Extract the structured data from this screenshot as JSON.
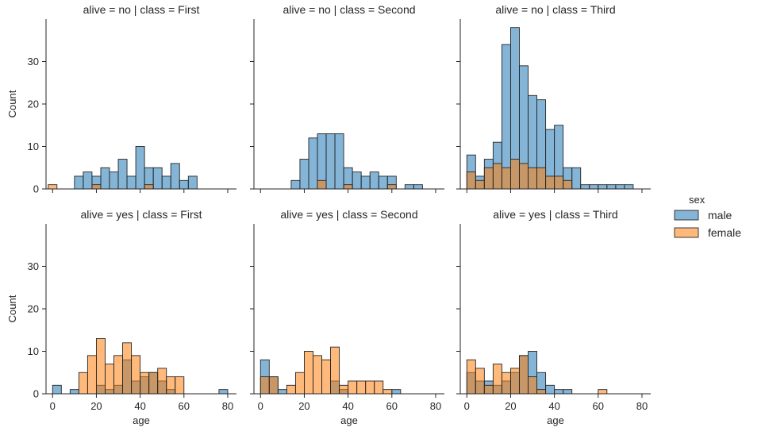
{
  "chart_data": {
    "type": "bar",
    "subtype": "faceted-histogram",
    "xlabel": "age",
    "ylabel": "Count",
    "xlim": [
      -3,
      84
    ],
    "ylim": [
      0,
      40
    ],
    "x_ticks": [
      0,
      20,
      40,
      60,
      80
    ],
    "y_ticks": [
      0,
      10,
      20,
      30
    ],
    "bin_width": 4,
    "legend": {
      "title": "sex",
      "position": "right",
      "entries": [
        {
          "name": "male",
          "color": "#1f77b4"
        },
        {
          "name": "female",
          "color": "#ff7f0e"
        }
      ]
    },
    "hue_alpha": 0.55,
    "facets": [
      {
        "title": "alive = no | class = First",
        "series": [
          {
            "name": "male",
            "bins": [
              [
                10,
                3
              ],
              [
                14,
                4
              ],
              [
                18,
                3
              ],
              [
                22,
                5
              ],
              [
                26,
                4
              ],
              [
                30,
                7
              ],
              [
                34,
                3
              ],
              [
                38,
                10
              ],
              [
                42,
                5
              ],
              [
                46,
                5
              ],
              [
                50,
                3
              ],
              [
                54,
                6
              ],
              [
                58,
                2
              ],
              [
                62,
                3
              ]
            ]
          },
          {
            "name": "female",
            "bins": [
              [
                -2,
                1
              ],
              [
                18,
                1
              ],
              [
                42,
                1
              ]
            ]
          }
        ]
      },
      {
        "title": "alive = no | class = Second",
        "series": [
          {
            "name": "male",
            "bins": [
              [
                14,
                2
              ],
              [
                18,
                7
              ],
              [
                22,
                12
              ],
              [
                26,
                13
              ],
              [
                30,
                13
              ],
              [
                34,
                13
              ],
              [
                38,
                5
              ],
              [
                42,
                4
              ],
              [
                46,
                3
              ],
              [
                50,
                4
              ],
              [
                54,
                3
              ],
              [
                58,
                3
              ],
              [
                66,
                1
              ],
              [
                70,
                1
              ]
            ]
          },
          {
            "name": "female",
            "bins": [
              [
                26,
                2
              ],
              [
                38,
                1
              ],
              [
                58,
                1
              ]
            ]
          }
        ]
      },
      {
        "title": "alive = no | class = Third",
        "series": [
          {
            "name": "male",
            "bins": [
              [
                0,
                8
              ],
              [
                4,
                3
              ],
              [
                8,
                7
              ],
              [
                12,
                11
              ],
              [
                16,
                34
              ],
              [
                20,
                38
              ],
              [
                24,
                29
              ],
              [
                28,
                22
              ],
              [
                32,
                21
              ],
              [
                36,
                14
              ],
              [
                40,
                15
              ],
              [
                44,
                5
              ],
              [
                48,
                5
              ],
              [
                52,
                1
              ],
              [
                56,
                1
              ],
              [
                60,
                1
              ],
              [
                64,
                1
              ],
              [
                68,
                1
              ],
              [
                72,
                1
              ]
            ]
          },
          {
            "name": "female",
            "bins": [
              [
                0,
                4
              ],
              [
                4,
                2
              ],
              [
                8,
                5
              ],
              [
                12,
                6
              ],
              [
                16,
                5
              ],
              [
                20,
                7
              ],
              [
                24,
                6
              ],
              [
                28,
                5
              ],
              [
                32,
                5
              ],
              [
                36,
                3
              ],
              [
                40,
                3
              ],
              [
                44,
                2
              ]
            ]
          }
        ]
      },
      {
        "title": "alive = yes | class = First",
        "series": [
          {
            "name": "male",
            "bins": [
              [
                0,
                2
              ],
              [
                8,
                1
              ],
              [
                20,
                2
              ],
              [
                24,
                1
              ],
              [
                28,
                2
              ],
              [
                32,
                8
              ],
              [
                36,
                3
              ],
              [
                40,
                4
              ],
              [
                44,
                5
              ],
              [
                48,
                3
              ],
              [
                52,
                1
              ],
              [
                76,
                1
              ]
            ]
          },
          {
            "name": "female",
            "bins": [
              [
                12,
                5
              ],
              [
                16,
                9
              ],
              [
                20,
                13
              ],
              [
                24,
                7
              ],
              [
                28,
                9
              ],
              [
                32,
                12
              ],
              [
                36,
                9
              ],
              [
                40,
                5
              ],
              [
                44,
                5
              ],
              [
                48,
                6
              ],
              [
                52,
                4
              ],
              [
                56,
                4
              ]
            ]
          }
        ]
      },
      {
        "title": "alive = yes | class = Second",
        "series": [
          {
            "name": "male",
            "bins": [
              [
                0,
                8
              ],
              [
                4,
                4
              ],
              [
                8,
                1
              ],
              [
                32,
                3
              ],
              [
                36,
                1
              ],
              [
                60,
                1
              ]
            ]
          },
          {
            "name": "female",
            "bins": [
              [
                0,
                4
              ],
              [
                4,
                4
              ],
              [
                12,
                2
              ],
              [
                16,
                5
              ],
              [
                20,
                10
              ],
              [
                24,
                9
              ],
              [
                28,
                8
              ],
              [
                32,
                11
              ],
              [
                36,
                2
              ],
              [
                40,
                3
              ],
              [
                44,
                3
              ],
              [
                48,
                3
              ],
              [
                52,
                3
              ],
              [
                56,
                1
              ]
            ]
          }
        ]
      },
      {
        "title": "alive = yes | class = Third",
        "series": [
          {
            "name": "male",
            "bins": [
              [
                0,
                5
              ],
              [
                4,
                3
              ],
              [
                8,
                3
              ],
              [
                12,
                2
              ],
              [
                16,
                3
              ],
              [
                20,
                5
              ],
              [
                24,
                9
              ],
              [
                28,
                10
              ],
              [
                32,
                5
              ],
              [
                36,
                2
              ],
              [
                40,
                1
              ],
              [
                44,
                1
              ]
            ]
          },
          {
            "name": "female",
            "bins": [
              [
                0,
                8
              ],
              [
                4,
                6
              ],
              [
                8,
                2
              ],
              [
                12,
                7
              ],
              [
                16,
                5
              ],
              [
                20,
                6
              ],
              [
                24,
                9
              ],
              [
                28,
                4
              ],
              [
                32,
                1
              ],
              [
                60,
                1
              ]
            ]
          }
        ]
      }
    ]
  }
}
